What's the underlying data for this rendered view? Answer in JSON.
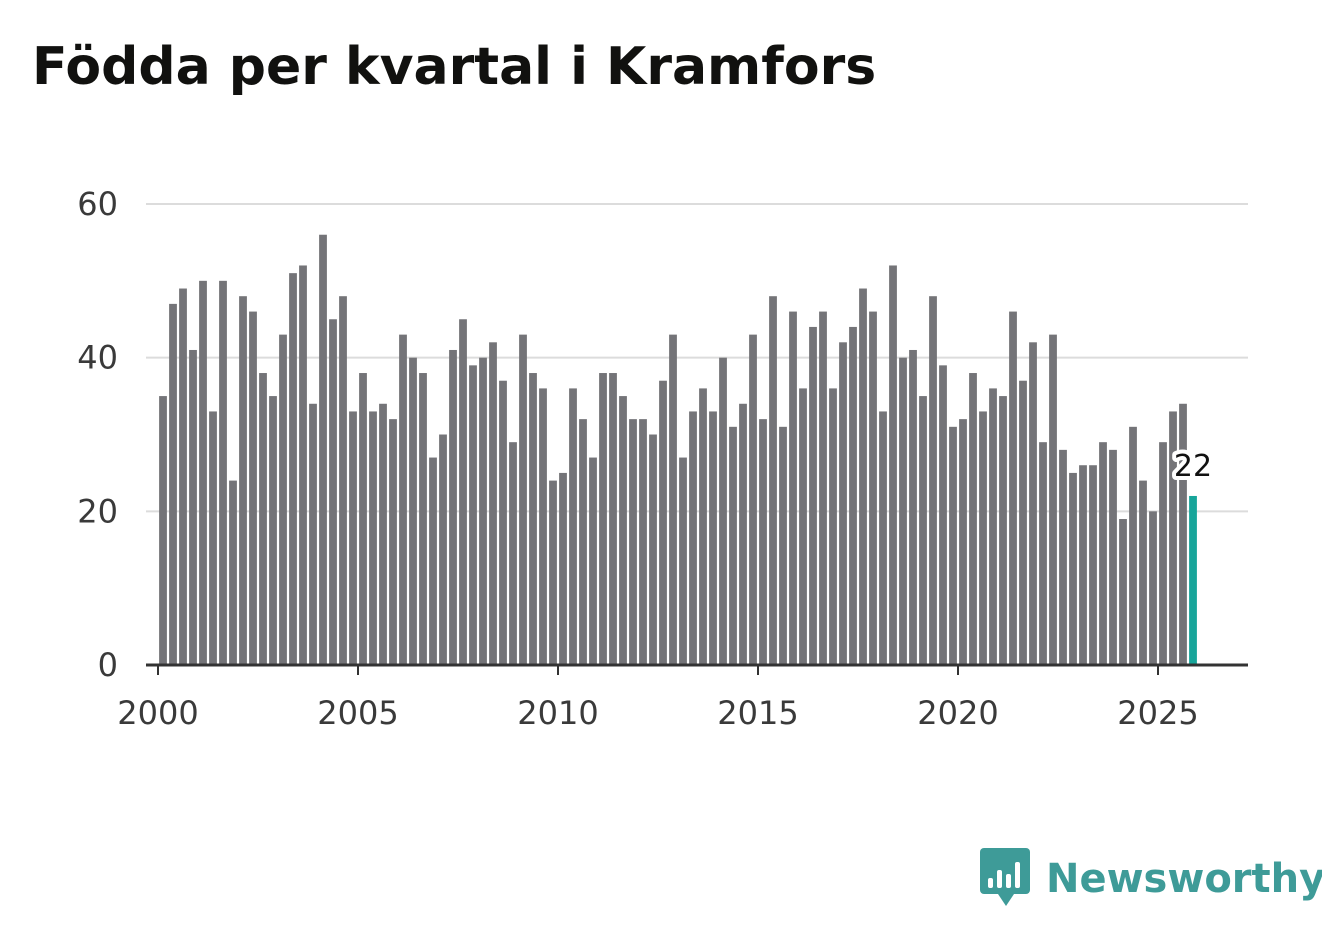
{
  "chart_data": {
    "type": "bar",
    "title": "Födda per kvartal i Kramfors",
    "xlabel": "",
    "ylabel": "",
    "ylim": [
      0,
      60
    ],
    "xlim": [
      1999.7,
      2027.25
    ],
    "yticks": [
      0,
      20,
      40,
      60
    ],
    "xticks": [
      2000,
      2005,
      2010,
      2015,
      2020,
      2025
    ],
    "grid": true,
    "start_year": 2000,
    "periods_per_year": 4,
    "highlight_index": 103,
    "highlight_label": "22",
    "bar_color": "#747478",
    "highlight_color": "#17a59a",
    "values": [
      35,
      47,
      49,
      41,
      50,
      33,
      50,
      24,
      48,
      46,
      38,
      35,
      43,
      51,
      52,
      34,
      56,
      45,
      48,
      33,
      38,
      33,
      34,
      32,
      43,
      40,
      38,
      27,
      30,
      41,
      45,
      39,
      40,
      42,
      37,
      29,
      43,
      38,
      36,
      24,
      25,
      36,
      32,
      27,
      38,
      38,
      35,
      32,
      32,
      30,
      37,
      43,
      27,
      33,
      36,
      33,
      40,
      31,
      34,
      43,
      32,
      48,
      31,
      46,
      36,
      44,
      46,
      36,
      42,
      44,
      49,
      46,
      33,
      52,
      40,
      41,
      35,
      48,
      39,
      31,
      32,
      38,
      33,
      36,
      35,
      46,
      37,
      42,
      29,
      43,
      28,
      25,
      26,
      26,
      29,
      28,
      19,
      31,
      24,
      20,
      29,
      33,
      34,
      22
    ]
  },
  "brand": {
    "name": "Newsworthy",
    "icon": "newsworthy-logo-icon",
    "color": "#3e9b98"
  }
}
